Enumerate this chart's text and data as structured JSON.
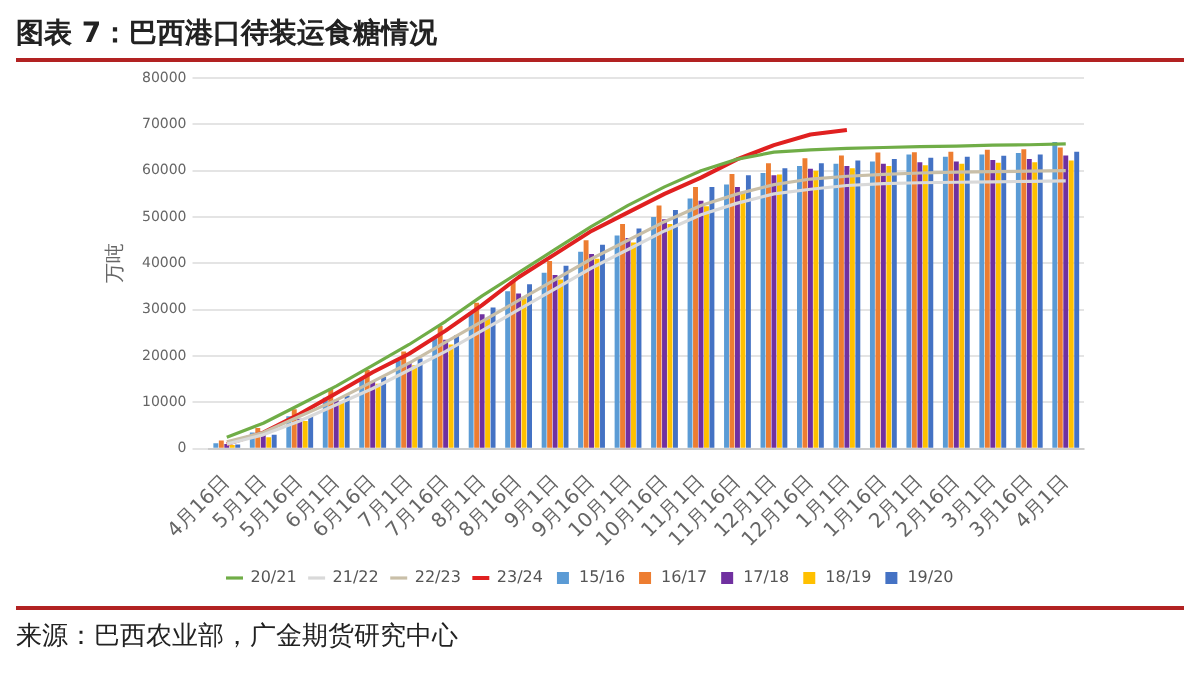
{
  "chart_data": {
    "type": "bar",
    "title": "图表 7：巴西港口待装运食糖情况",
    "ylabel": "万吨",
    "annotations": [
      "来源：巴西农业部，广金期货研究中心"
    ],
    "categories": [
      "4月16日",
      "5月1日",
      "5月16日",
      "6月1日",
      "6月16日",
      "7月1日",
      "7月16日",
      "8月1日",
      "8月16日",
      "9月1日",
      "9月16日",
      "10月1日",
      "10月16日",
      "11月1日",
      "11月16日",
      "12月1日",
      "12月16日",
      "1月1日",
      "1月16日",
      "2月1日",
      "2月16日",
      "3月1日",
      "3月16日",
      "4月1日"
    ],
    "series": [
      {
        "name": "15/16",
        "color": "#5b9bd5",
        "values": [
          1200,
          3500,
          7000,
          11000,
          15000,
          19000,
          24000,
          29500,
          34000,
          38000,
          42500,
          46000,
          50000,
          54000,
          57000,
          59500,
          61000,
          61500,
          62000,
          63500,
          63000,
          63500,
          63800,
          66200
        ]
      },
      {
        "name": "16/17",
        "color": "#ed7d31",
        "values": [
          1800,
          4500,
          8500,
          13000,
          17000,
          21000,
          26500,
          31500,
          36000,
          40500,
          45000,
          48500,
          52500,
          56500,
          59300,
          61600,
          62700,
          63300,
          63900,
          64000,
          64100,
          64500,
          64600,
          65000
        ]
      },
      {
        "name": "17/18",
        "color": "#7030a0",
        "values": [
          1000,
          3000,
          6500,
          10500,
          14500,
          18500,
          23500,
          29000,
          33500,
          37500,
          42000,
          45500,
          49500,
          53500,
          56500,
          59000,
          60400,
          61000,
          61500,
          61800,
          62000,
          62300,
          62500,
          63300
        ]
      },
      {
        "name": "18/19",
        "color": "#ffc000",
        "values": [
          800,
          2500,
          6000,
          10000,
          14000,
          18000,
          22500,
          28000,
          32500,
          36500,
          41000,
          44500,
          48500,
          52300,
          55200,
          59200,
          60000,
          60500,
          61000,
          61200,
          61500,
          61700,
          61800,
          62200
        ]
      },
      {
        "name": "19/20",
        "color": "#4472c4",
        "values": [
          900,
          3000,
          7000,
          11500,
          15500,
          19500,
          24500,
          30500,
          35500,
          39500,
          44000,
          47500,
          51500,
          56500,
          59000,
          60500,
          61600,
          62200,
          62500,
          62800,
          63000,
          63200,
          63500,
          64100
        ]
      },
      {
        "name": "20/21",
        "type": "line",
        "color": "#70ad47",
        "values": [
          2500,
          5500,
          9500,
          13500,
          18000,
          22500,
          27500,
          33000,
          38000,
          43000,
          48000,
          52500,
          56500,
          60000,
          62500,
          64000,
          64500,
          64800,
          65000,
          65200,
          65300,
          65500,
          65600,
          65800
        ]
      },
      {
        "name": "21/22",
        "type": "line",
        "color": "#d9d9d9",
        "values": [
          1000,
          3000,
          6000,
          9500,
          13000,
          17000,
          21000,
          25500,
          30000,
          34500,
          39000,
          43000,
          47000,
          50500,
          53000,
          55000,
          56000,
          56800,
          57200,
          57400,
          57500,
          57600,
          57700,
          57800
        ]
      },
      {
        "name": "22/23",
        "type": "line",
        "color": "#c9bfa8",
        "values": [
          1500,
          3500,
          7000,
          10500,
          14500,
          18500,
          23000,
          27500,
          32000,
          36500,
          41000,
          45000,
          49000,
          52500,
          55000,
          57000,
          58200,
          58800,
          59200,
          59500,
          59700,
          59800,
          59900,
          60000
        ]
      },
      {
        "name": "23/24",
        "type": "line",
        "color": "#e02020",
        "values": [
          1000,
          3500,
          7500,
          12000,
          16500,
          20500,
          25500,
          31000,
          37000,
          42000,
          47000,
          51000,
          55000,
          58500,
          62500,
          65500,
          67800,
          68800,
          null,
          null,
          null,
          null,
          null,
          null
        ]
      }
    ],
    "ylim": [
      0,
      80000
    ],
    "yticks": [
      0,
      10000,
      20000,
      30000,
      40000,
      50000,
      60000,
      70000,
      80000
    ],
    "grid": "y",
    "legend": "bottom",
    "marker": "none"
  }
}
